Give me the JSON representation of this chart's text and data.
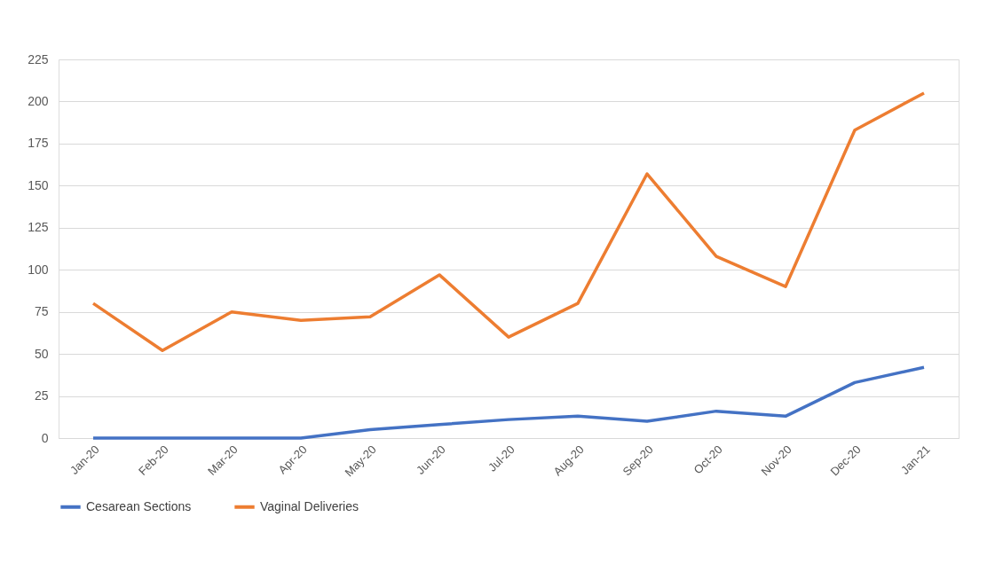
{
  "chart_data": {
    "type": "line",
    "categories": [
      "Jan-20",
      "Feb-20",
      "Mar-20",
      "Apr-20",
      "May-20",
      "Jun-20",
      "Jul-20",
      "Aug-20",
      "Sep-20",
      "Oct-20",
      "Nov-20",
      "Dec-20",
      "Jan-21"
    ],
    "series": [
      {
        "name": "Cesarean Sections",
        "color": "#4472c4",
        "values": [
          0,
          0,
          0,
          0,
          5,
          8,
          11,
          13,
          10,
          16,
          13,
          33,
          42
        ]
      },
      {
        "name": "Vaginal Deliveries",
        "color": "#ed7d31",
        "values": [
          80,
          52,
          75,
          70,
          72,
          97,
          60,
          80,
          157,
          108,
          90,
          183,
          205
        ]
      }
    ],
    "ylim": [
      0,
      225
    ],
    "yticks": [
      0,
      25,
      50,
      75,
      100,
      125,
      150,
      175,
      200,
      225
    ],
    "grid": "y",
    "legend": "bottom",
    "marker": "none",
    "line_style": "solid"
  }
}
